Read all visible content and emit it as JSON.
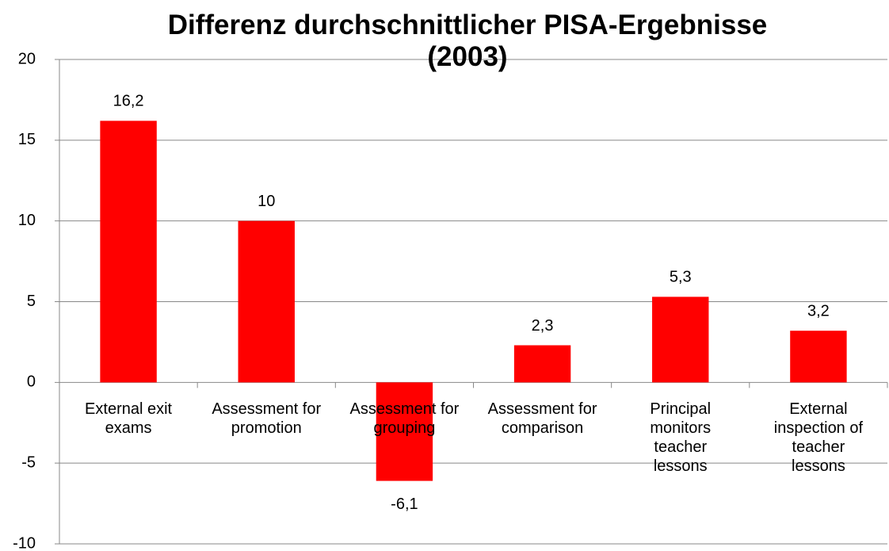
{
  "chart_data": {
    "type": "bar",
    "title": "Differenz durchschnittlicher PISA-Ergebnisse (2003)",
    "categories": [
      "External exit exams",
      "Assessment for promotion",
      "Assessment for grouping",
      "Assessment for comparison",
      "Principal monitors teacher lessons",
      "External inspection of teacher lessons"
    ],
    "values": [
      16.2,
      10,
      -6.1,
      2.3,
      5.3,
      3.2
    ],
    "value_labels": [
      "16,2",
      "10",
      "-6,1",
      "2,3",
      "5,3",
      "3,2"
    ],
    "color": "#ff0000",
    "ylim": [
      -10,
      20
    ],
    "yticks": [
      -10,
      -5,
      0,
      5,
      10,
      15,
      20
    ],
    "grid": true
  }
}
